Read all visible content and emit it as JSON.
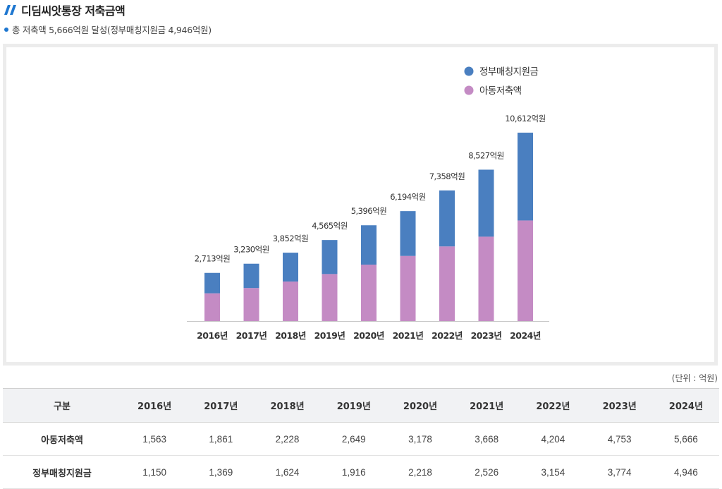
{
  "header": {
    "title": "디딤씨앗통장 저축금액",
    "summary": "총 저축액 5,666억원 달성(정부매칭지원금 4,946억원)",
    "unit_note": "(단위 : 억원)"
  },
  "colors": {
    "government": "#4a7fc0",
    "child": "#c48bc4",
    "accent": "#1e77d0"
  },
  "chart_data": {
    "type": "bar",
    "stacked": true,
    "categories": [
      "2016년",
      "2017년",
      "2018년",
      "2019년",
      "2020년",
      "2021년",
      "2022년",
      "2023년",
      "2024년"
    ],
    "series": [
      {
        "name": "아동저축액",
        "values": [
          1563,
          1861,
          2228,
          2649,
          3178,
          3668,
          4204,
          4753,
          5666
        ]
      },
      {
        "name": "정부매칭지원금",
        "values": [
          1150,
          1369,
          1624,
          1916,
          2218,
          2526,
          3154,
          3774,
          4946
        ]
      }
    ],
    "totals": [
      "2,713억원",
      "3,230억원",
      "3,852억원",
      "4,565억원",
      "5,396억원",
      "6,194억원",
      "7,358억원",
      "8,527억원",
      "10,612억원"
    ],
    "legend": [
      "정부매칭지원금",
      "아동저축액"
    ],
    "legend_position": "top-right",
    "ylim": [
      0,
      11000
    ],
    "grid": false
  },
  "table": {
    "headers": [
      "구분",
      "2016년",
      "2017년",
      "2018년",
      "2019년",
      "2020년",
      "2021년",
      "2022년",
      "2023년",
      "2024년"
    ],
    "rows": [
      {
        "label": "아동저축액",
        "cells": [
          "1,563",
          "1,861",
          "2,228",
          "2,649",
          "3,178",
          "3,668",
          "4,204",
          "4,753",
          "5,666"
        ]
      },
      {
        "label": "정부매칭지원금",
        "cells": [
          "1,150",
          "1,369",
          "1,624",
          "1,916",
          "2,218",
          "2,526",
          "3,154",
          "3,774",
          "4,946"
        ]
      }
    ]
  }
}
